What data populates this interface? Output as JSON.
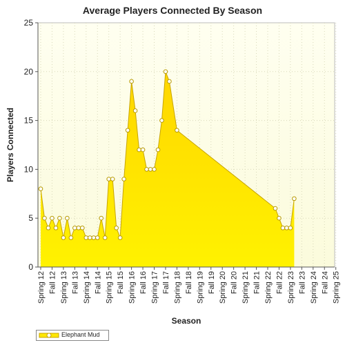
{
  "chart_data": {
    "type": "area",
    "title": "Average Players Connected By Season",
    "xlabel": "Season",
    "ylabel": "Players Connected",
    "ylim": [
      0,
      25
    ],
    "yticks": [
      0,
      5,
      10,
      15,
      20,
      25
    ],
    "grid": true,
    "legend_position": "bottom-left",
    "tick_labels": [
      "Spring 12",
      "Fall 12",
      "Spring 13",
      "Fall 13",
      "Spring 14",
      "Fall 14",
      "Spring 15",
      "Fall 15",
      "Spring 16",
      "Fall 16",
      "Spring 17",
      "Fall 17",
      "Spring 18",
      "Fall 18",
      "Spring 19",
      "Fall 19",
      "Spring 20",
      "Fall 20",
      "Spring 21",
      "Fall 21",
      "Spring 22",
      "Fall 22",
      "Spring 23",
      "Fall 23",
      "Spring 24",
      "Fall 24",
      "Spring 25"
    ],
    "series": [
      {
        "name": "Elephant Mud",
        "color": "#ffe800",
        "points": [
          {
            "x": 0.0,
            "y": 8
          },
          {
            "x": 0.333,
            "y": 5
          },
          {
            "x": 0.667,
            "y": 4
          },
          {
            "x": 1.0,
            "y": 5
          },
          {
            "x": 1.333,
            "y": 4
          },
          {
            "x": 1.667,
            "y": 5
          },
          {
            "x": 2.0,
            "y": 3
          },
          {
            "x": 2.333,
            "y": 5
          },
          {
            "x": 2.667,
            "y": 3
          },
          {
            "x": 3.0,
            "y": 4
          },
          {
            "x": 3.333,
            "y": 4
          },
          {
            "x": 3.667,
            "y": 4
          },
          {
            "x": 4.0,
            "y": 3
          },
          {
            "x": 4.333,
            "y": 3
          },
          {
            "x": 4.667,
            "y": 3
          },
          {
            "x": 5.0,
            "y": 3
          },
          {
            "x": 5.333,
            "y": 5
          },
          {
            "x": 5.667,
            "y": 3
          },
          {
            "x": 6.0,
            "y": 9
          },
          {
            "x": 6.333,
            "y": 9
          },
          {
            "x": 6.667,
            "y": 4
          },
          {
            "x": 7.0,
            "y": 3
          },
          {
            "x": 7.333,
            "y": 9
          },
          {
            "x": 7.667,
            "y": 14
          },
          {
            "x": 8.0,
            "y": 19
          },
          {
            "x": 8.333,
            "y": 16
          },
          {
            "x": 8.667,
            "y": 12
          },
          {
            "x": 9.0,
            "y": 12
          },
          {
            "x": 9.333,
            "y": 10
          },
          {
            "x": 9.667,
            "y": 10
          },
          {
            "x": 10.0,
            "y": 10
          },
          {
            "x": 10.333,
            "y": 12
          },
          {
            "x": 10.667,
            "y": 15
          },
          {
            "x": 11.0,
            "y": 20
          },
          {
            "x": 11.333,
            "y": 19
          },
          {
            "x": 12.0,
            "y": 14
          },
          {
            "x": 20.667,
            "y": 6
          },
          {
            "x": 21.0,
            "y": 5
          },
          {
            "x": 21.333,
            "y": 4
          },
          {
            "x": 21.667,
            "y": 4
          },
          {
            "x": 22.0,
            "y": 4
          },
          {
            "x": 22.333,
            "y": 7
          }
        ]
      }
    ]
  }
}
